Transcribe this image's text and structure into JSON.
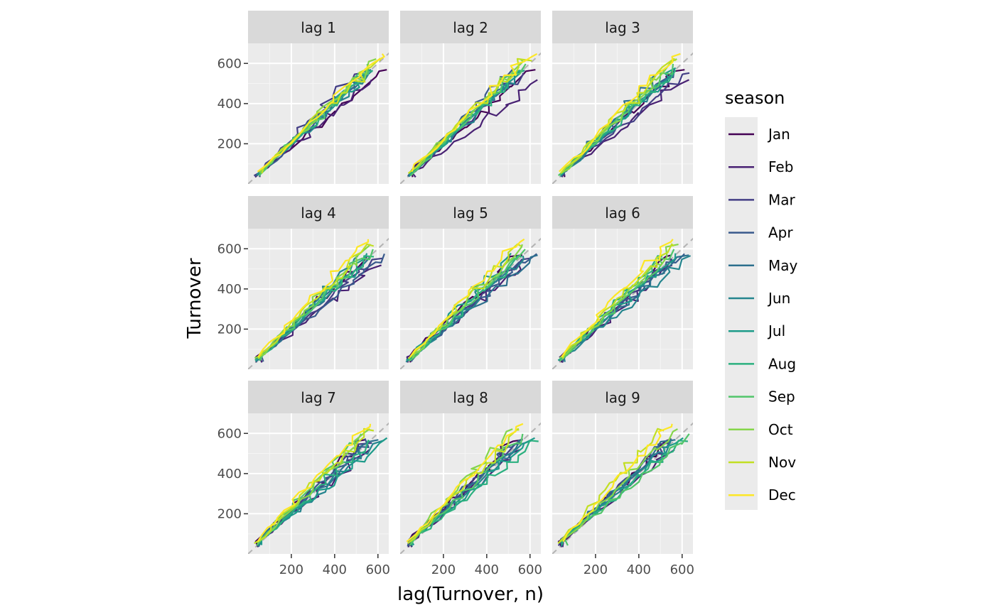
{
  "chart_data": {
    "type": "line",
    "chart_kind": "lag plot (faceted)",
    "xlabel": "lag(Turnover, n)",
    "ylabel": "Turnover",
    "xlim": [
      0,
      650
    ],
    "ylim": [
      0,
      700
    ],
    "x_ticks": [
      200,
      400,
      600
    ],
    "y_ticks": [
      200,
      400,
      600
    ],
    "grid": true,
    "reference_line": "y = x (dashed, grey)",
    "legend": {
      "title": "season",
      "position": "right"
    },
    "facets": [
      "lag 1",
      "lag 2",
      "lag 3",
      "lag 4",
      "lag 5",
      "lag 6",
      "lag 7",
      "lag 8",
      "lag 9"
    ],
    "series": [
      {
        "name": "Jan",
        "color": "#440154"
      },
      {
        "name": "Feb",
        "color": "#482173"
      },
      {
        "name": "Mar",
        "color": "#433E85"
      },
      {
        "name": "Apr",
        "color": "#38598C"
      },
      {
        "name": "May",
        "color": "#2D708E"
      },
      {
        "name": "Jun",
        "color": "#25858E"
      },
      {
        "name": "Jul",
        "color": "#1E9B8A"
      },
      {
        "name": "Aug",
        "color": "#2BB07F"
      },
      {
        "name": "Sep",
        "color": "#51C56A"
      },
      {
        "name": "Oct",
        "color": "#85D54A"
      },
      {
        "name": "Nov",
        "color": "#C2DF23"
      },
      {
        "name": "Dec",
        "color": "#FDE725"
      }
    ],
    "series_trend": {
      "turnover_range_per_month": [
        [
          40,
          560
        ],
        [
          35,
          510
        ],
        [
          40,
          560
        ],
        [
          40,
          560
        ],
        [
          42,
          565
        ],
        [
          40,
          560
        ],
        [
          45,
          570
        ],
        [
          45,
          575
        ],
        [
          48,
          590
        ],
        [
          50,
          610
        ],
        [
          55,
          630
        ],
        [
          60,
          670
        ]
      ],
      "approx_slope_y_over_lagx": "~1.0 (points lie close to y = x)"
    }
  }
}
